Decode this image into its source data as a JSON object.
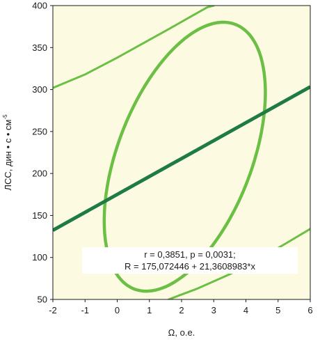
{
  "chart_data": {
    "type": "scatter",
    "title": "",
    "xlabel": "Ω, о.е.",
    "ylabel": "ЛСС, дин • с • см",
    "ylabel_superscript": "-5",
    "xlim": [
      -2,
      6
    ],
    "ylim": [
      50,
      400
    ],
    "xticks": [
      -2,
      -1,
      0,
      1,
      2,
      3,
      4,
      5,
      6
    ],
    "yticks": [
      50,
      100,
      150,
      200,
      250,
      300,
      350,
      400
    ],
    "grid": false,
    "legend": "none",
    "annotation": {
      "line1": "r = 0,3851, p = 0,0031;",
      "line2": "R = 175,072446 + 21,3608983*x"
    },
    "regression_line": {
      "intercept": 175.072446,
      "slope": 21.3608983
    },
    "confidence_ellipse": {
      "center": [
        2.1,
        220
      ],
      "major_end_a": [
        3.2,
        380
      ],
      "major_end_b": [
        1.0,
        60
      ],
      "half_minor_x": 2.25,
      "half_minor_y": 7
    },
    "prediction_band_upper": {
      "x": [
        -2.0,
        -1.0,
        0.0,
        0.8,
        1.6,
        2.2,
        2.8,
        3.0
      ],
      "y": [
        302,
        318,
        338,
        355,
        372,
        385,
        398,
        400
      ]
    },
    "prediction_band_lower": {
      "x": [
        1.6,
        2.5,
        3.5,
        4.5,
        5.3,
        6.0
      ],
      "y": [
        50,
        63,
        80,
        100,
        118,
        134
      ]
    },
    "colors": {
      "background": "#fcfbe1",
      "regression": "#1e7b43",
      "ellipse": "#6cbf45",
      "band": "#6cbf45",
      "annotation_box": "#ffffff",
      "text": "#1a1a1a"
    }
  }
}
